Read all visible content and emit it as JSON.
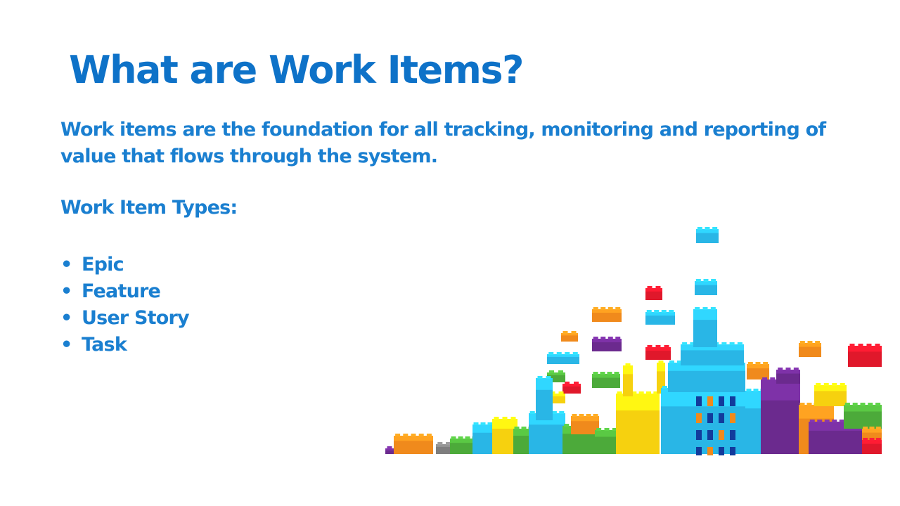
{
  "slide": {
    "title": "What are Work Items?",
    "intro": "Work items are the foundation for all tracking, monitoring and reporting of value that flows through the system.",
    "types_heading": "Work Item Types:",
    "bullet_glyph": "•",
    "types": [
      "Epic",
      "Feature",
      "User Story",
      "Task"
    ]
  },
  "colors": {
    "title": "#0e72c8",
    "body_text": "#1a7fd0",
    "brick_cyan": "#29b6e6",
    "brick_red": "#e0182b",
    "brick_orange": "#f08a1c",
    "brick_purple": "#6b2a8e",
    "brick_yellow": "#f6d10f",
    "brick_green": "#4caa3a",
    "brick_navy": "#123b9c",
    "brick_grey": "#7e7e7e"
  }
}
